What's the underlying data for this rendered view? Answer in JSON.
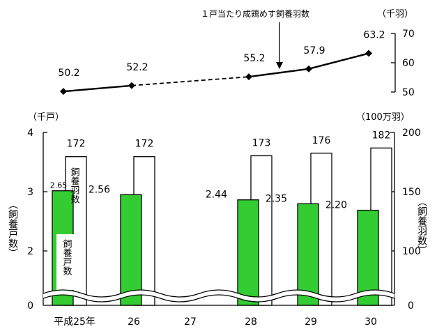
{
  "chart_data": [
    {
      "type": "line",
      "annotation": "１戸当たり成鶏めす飼養羽数",
      "unit": "（千羽）",
      "ylim": [
        50,
        70
      ],
      "yticks": [
        "50",
        "60",
        "70"
      ],
      "x": [
        "平成25年",
        "26",
        "27",
        "28",
        "29",
        "30"
      ],
      "values": [
        50.2,
        52.2,
        null,
        55.2,
        57.9,
        63.2
      ],
      "labels": [
        "50.2",
        "52.2",
        "",
        "55.2",
        "57.9",
        "63.2"
      ],
      "dashed_segment_note": "26→28 dashed (27 missing)"
    },
    {
      "type": "bar",
      "categories": [
        "平成25年",
        "26",
        "27",
        "28",
        "29",
        "30"
      ],
      "series": [
        {
          "name": "飼養戸数",
          "color": "#33cc33",
          "axis": "left",
          "values": [
            2.65,
            2.56,
            null,
            2.44,
            2.35,
            2.2
          ],
          "labels": [
            "2.65",
            "2.56",
            "",
            "2.44",
            "2.35",
            "2.20"
          ]
        },
        {
          "name": "飼養羽数",
          "color": "#ffffff",
          "axis": "right",
          "values": [
            172,
            172,
            null,
            173,
            176,
            182
          ],
          "labels": [
            "172",
            "172",
            "",
            "173",
            "176",
            "182"
          ]
        }
      ],
      "left_axis": {
        "unit": "（千戸）",
        "title": "（飼養戸数）",
        "ylim": [
          0,
          4
        ],
        "ticks": [
          "0",
          "2",
          "3",
          "4"
        ]
      },
      "right_axis": {
        "unit": "（100万羽）",
        "title": "（飼養羽数）",
        "ylim": [
          0,
          200
        ],
        "ticks": [
          "0",
          "100",
          "150",
          "200"
        ]
      },
      "axis_break": true
    }
  ]
}
